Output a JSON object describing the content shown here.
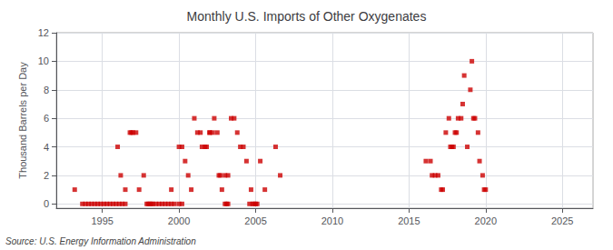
{
  "chart_data": {
    "type": "scatter",
    "title": "Monthly U.S. Imports of Other Oxygenates",
    "ylabel": "Thousand Barrels per Day",
    "source": "Source: U.S. Energy Information Administration",
    "color": "#cc0000",
    "marker": "square",
    "grid": true,
    "xlim": [
      1992,
      2027
    ],
    "ylim": [
      -0.3,
      12
    ],
    "xticks": [
      1995,
      2000,
      2005,
      2010,
      2015,
      2020,
      2025
    ],
    "yticks": [
      0,
      2,
      4,
      6,
      8,
      10,
      12
    ],
    "x": [
      1993.2,
      1993.7,
      1993.9,
      1994.1,
      1994.3,
      1994.5,
      1994.7,
      1994.9,
      1995.1,
      1995.3,
      1995.5,
      1995.7,
      1995.9,
      1996.1,
      1996.3,
      1996.5,
      1996.0,
      1996.2,
      1996.5,
      1996.8,
      1996.9,
      1997.0,
      1997.2,
      1997.4,
      1997.7,
      1997.9,
      1998.0,
      1998.1,
      1998.2,
      1998.3,
      1998.5,
      1998.7,
      1998.9,
      1999.1,
      1999.3,
      1999.5,
      1999.7,
      1999.5,
      2000.0,
      2000.2,
      2000.0,
      2000.2,
      2000.4,
      2000.6,
      2000.8,
      2001.0,
      2001.2,
      2001.4,
      2001.5,
      2001.7,
      2001.8,
      2002.0,
      2002.0,
      2002.2,
      2002.3,
      2002.5,
      2002.6,
      2002.7,
      2002.8,
      2003.0,
      2003.1,
      2003.2,
      2003.0,
      2003.2,
      2003.4,
      2003.6,
      2003.8,
      2004.0,
      2004.2,
      2004.4,
      2004.6,
      2004.7,
      2004.8,
      2004.9,
      2005.0,
      2005.1,
      2005.3,
      2005.6,
      2006.3,
      2006.6,
      2016.1,
      2016.4,
      2016.5,
      2016.7,
      2016.9,
      2017.1,
      2017.2,
      2017.4,
      2017.6,
      2017.7,
      2017.8,
      2017.9,
      2018.0,
      2018.1,
      2018.2,
      2018.4,
      2018.5,
      2018.6,
      2018.8,
      2019.0,
      2019.1,
      2019.2,
      2019.3,
      2019.5,
      2019.6,
      2019.8,
      2019.9,
      2020.0
    ],
    "values": [
      1,
      0,
      0,
      0,
      0,
      0,
      0,
      0,
      0,
      0,
      0,
      0,
      0,
      0,
      0,
      0,
      4,
      2,
      1,
      5,
      5,
      5,
      5,
      1,
      2,
      0,
      0,
      0,
      0,
      0,
      0,
      0,
      0,
      0,
      0,
      0,
      0,
      1,
      0,
      0,
      4,
      4,
      3,
      2,
      1,
      6,
      5,
      5,
      4,
      4,
      4,
      5,
      5,
      5,
      6,
      5,
      2,
      2,
      1,
      0,
      0,
      0,
      2,
      2,
      6,
      6,
      5,
      4,
      4,
      3,
      0,
      1,
      0,
      0,
      0,
      0,
      3,
      1,
      4,
      2,
      3,
      3,
      2,
      2,
      2,
      1,
      1,
      5,
      6,
      4,
      4,
      4,
      5,
      5,
      6,
      6,
      7,
      9,
      4,
      8,
      10,
      6,
      6,
      5,
      3,
      2,
      1,
      1
    ]
  }
}
